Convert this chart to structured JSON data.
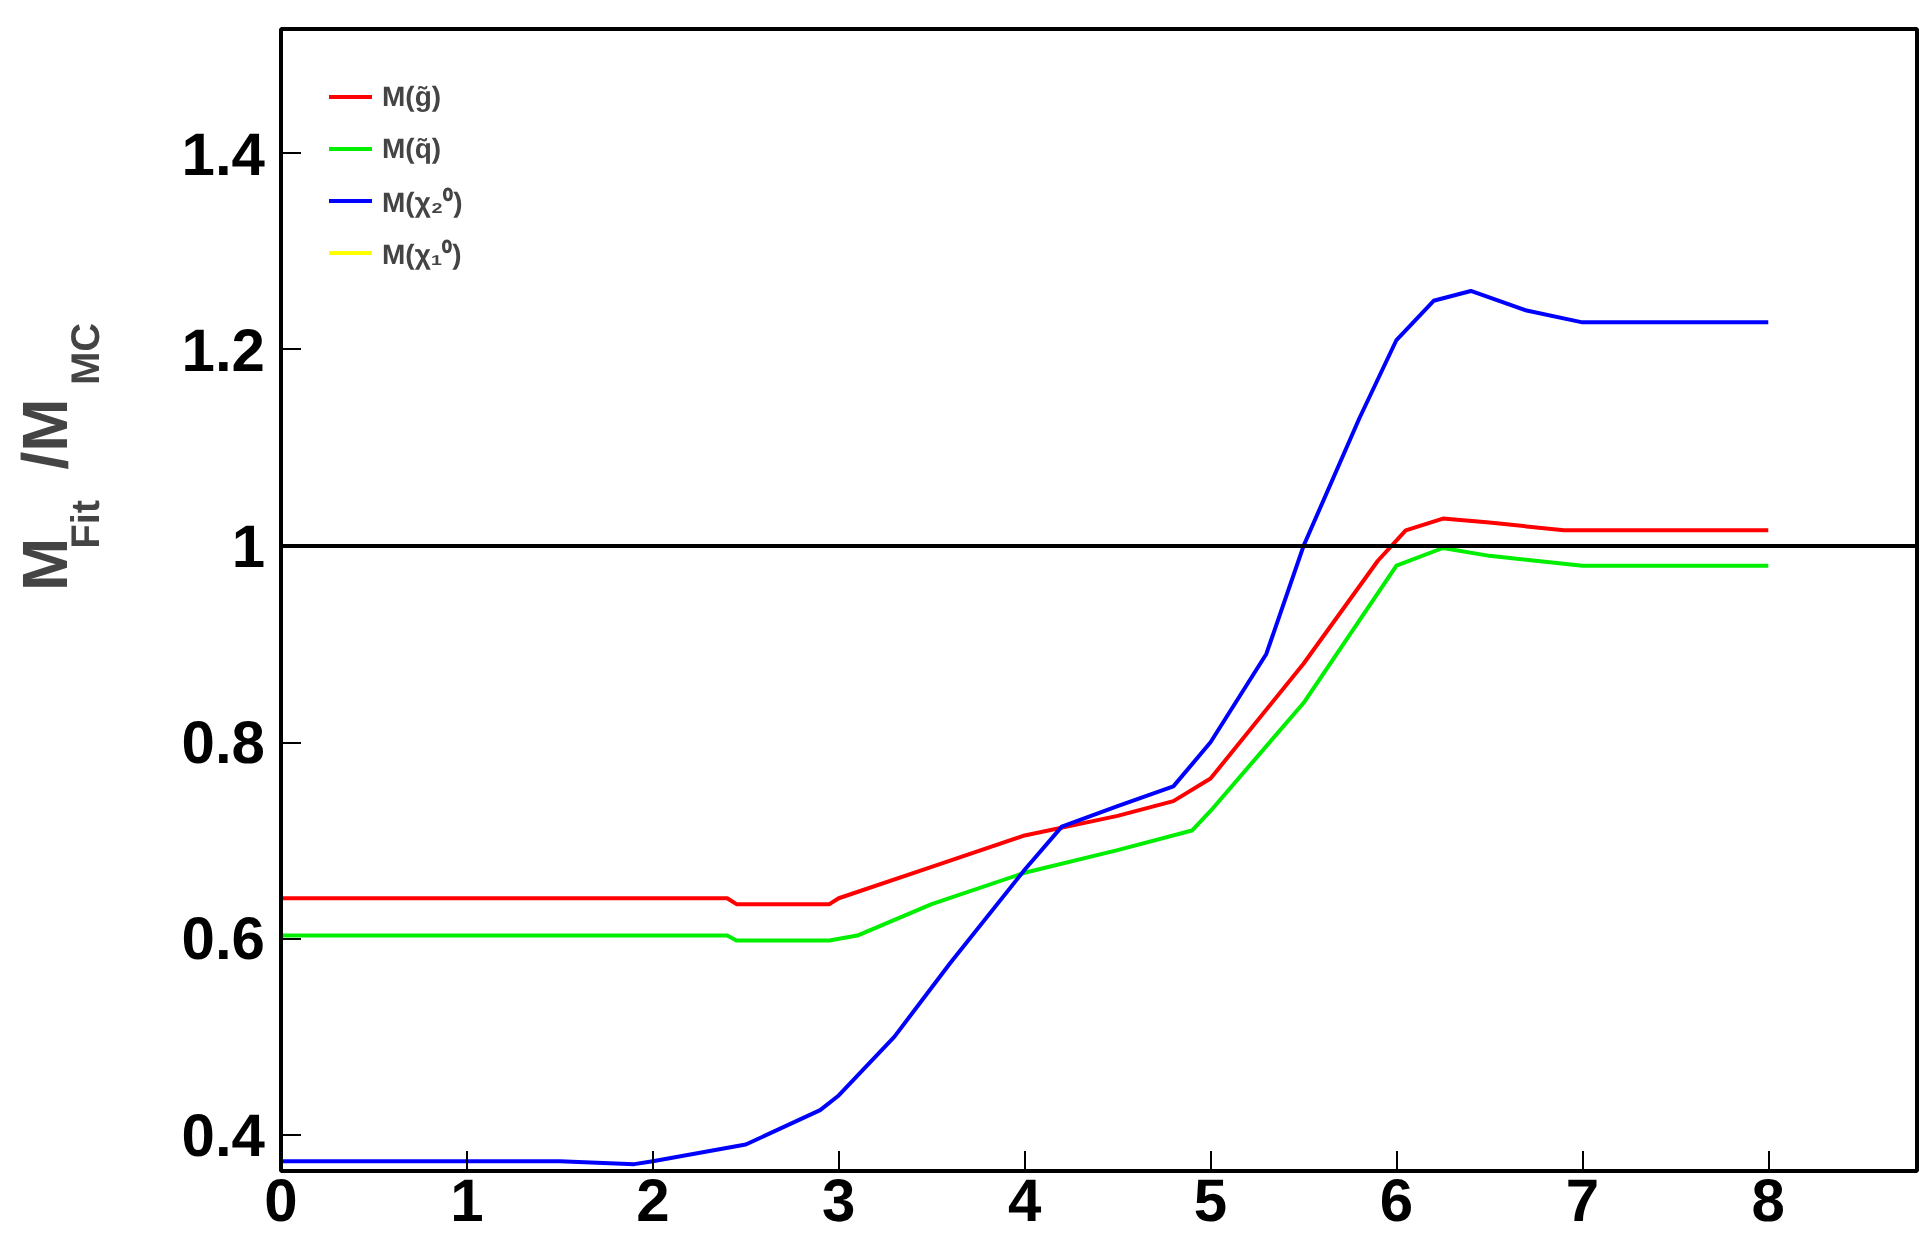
{
  "chart_data": {
    "type": "line",
    "ylabel": "M$_{Fit}$/M$_{MC}$",
    "xlim": [
      0,
      8.8
    ],
    "ylim": [
      0.363,
      1.527
    ],
    "xticks": [
      0,
      1,
      2,
      3,
      4,
      5,
      6,
      7,
      8
    ],
    "yticks": [
      0.4,
      0.6,
      0.8,
      1,
      1.2,
      1.4
    ],
    "grid": false,
    "legend": "top left",
    "marker": "none",
    "line_style": "solid",
    "ref_lines": [
      {
        "axis": "y",
        "value": 1,
        "color": "#000000"
      }
    ],
    "series": [
      {
        "name": "M(g̃)",
        "color": "#ff0000",
        "x": [
          0,
          1,
          2,
          2.4,
          2.45,
          2.95,
          3,
          3.5,
          4,
          4.5,
          4.8,
          5,
          5.5,
          5.9,
          6.05,
          6.25,
          6.5,
          6.9,
          7,
          8
        ],
        "values": [
          0.641,
          0.641,
          0.641,
          0.641,
          0.635,
          0.635,
          0.641,
          0.673,
          0.705,
          0.725,
          0.74,
          0.763,
          0.88,
          0.985,
          1.016,
          1.028,
          1.024,
          1.016,
          1.016,
          1.016
        ]
      },
      {
        "name": "M(q̃)",
        "color": "#00ee00",
        "x": [
          0,
          1,
          2,
          2.4,
          2.45,
          2.95,
          3.1,
          3.5,
          4,
          4.5,
          4.9,
          5,
          5.5,
          6,
          6.25,
          6.5,
          7,
          8
        ],
        "values": [
          0.603,
          0.603,
          0.603,
          0.603,
          0.598,
          0.598,
          0.603,
          0.635,
          0.667,
          0.69,
          0.71,
          0.73,
          0.84,
          0.98,
          0.998,
          0.99,
          0.98,
          0.98
        ]
      },
      {
        "name": "M(χ₂⁰)",
        "color": "#0000ff",
        "x": [
          0,
          1,
          1.5,
          1.9,
          2,
          2.5,
          2.9,
          3,
          3.3,
          3.6,
          4,
          4.2,
          4.5,
          4.8,
          5,
          5.3,
          5.5,
          5.8,
          6,
          6.2,
          6.4,
          6.7,
          7,
          8
        ],
        "values": [
          0.373,
          0.373,
          0.373,
          0.37,
          0.373,
          0.39,
          0.425,
          0.44,
          0.5,
          0.575,
          0.67,
          0.714,
          0.735,
          0.755,
          0.8,
          0.89,
          1.0,
          1.13,
          1.21,
          1.25,
          1.26,
          1.24,
          1.228,
          1.228
        ]
      },
      {
        "name": "M(χ₁⁰)",
        "color": "#ffff00",
        "values": [
          null
        ]
      }
    ]
  }
}
